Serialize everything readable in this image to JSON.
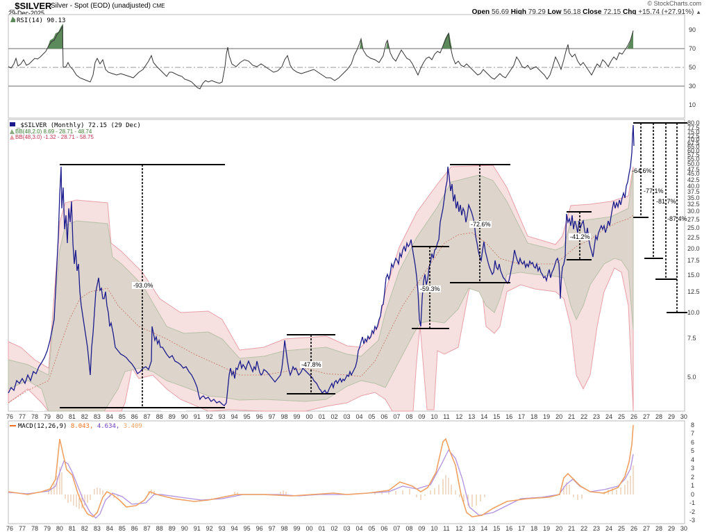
{
  "header": {
    "symbol": "_$SILVER",
    "description": "Silver - Spot (EOD) (unadjusted)",
    "exchange": "CME",
    "date": "29-Dec-2025",
    "copyright": "© StockCharts.com",
    "open_label": "Open",
    "open": "56.69",
    "high_label": "High",
    "high": "79.29",
    "low_label": "Low",
    "low": "56.18",
    "close_label": "Close",
    "close": "72.15",
    "chg_label": "Chg",
    "chg": "+15.74 (+27.91%)",
    "chg_icon": "up-triangle-icon"
  },
  "legends": {
    "rsi": "RSI(14) 90.13",
    "price": "_$SILVER (Monthly) 72.15 (29 Dec)",
    "bb2": "BB(48,2.0) 8.69 - 28.71 - 48.74",
    "bb3": "BB(48,3.0) -1.32 - 28.71 - 58.75",
    "macd_label": "MACD(12,26,9)",
    "macd_v1": "8.043,",
    "macd_v2": "4.634,",
    "macd_v3": "3.409"
  },
  "colors": {
    "price": "#1a1a8c",
    "bb2_fill": "#ddd5cc",
    "bb3_fill": "#f6e0e0",
    "bb3_line": "#e8a0a8",
    "bb2_line": "#b8c0a8",
    "ma_line": "#c87060",
    "rsi_line": "#333333",
    "rsi_overbought": "#5d8a5a",
    "macd_line": "#f0a060",
    "signal_line": "#b090e0",
    "histogram": "#e0b890"
  },
  "chart_data": [
    {
      "type": "line",
      "title": "RSI(14)",
      "ylim": [
        0,
        100
      ],
      "y_ticks": [
        10,
        30,
        50,
        70,
        90
      ],
      "reference_lines": [
        30,
        50,
        70
      ],
      "latest": 90.13,
      "x": [
        1976,
        1977,
        1978,
        1979,
        1979.5,
        1980,
        1980.1,
        1981,
        1982,
        1983,
        1984,
        1985,
        1986,
        1987,
        1988,
        1989,
        1990,
        1991,
        1992,
        1993,
        1993.5,
        1994,
        1995,
        1996,
        1997,
        1998,
        1999,
        2000,
        2001,
        2002,
        2003,
        2004,
        2005,
        2006,
        2007,
        2008,
        2009,
        2010,
        2011,
        2011.5,
        2012,
        2013,
        2014,
        2015,
        2016,
        2017,
        2018,
        2019,
        2020,
        2020.6,
        2021,
        2022,
        2023,
        2024,
        2025,
        2025.5,
        2026
      ],
      "values": [
        50,
        55,
        58,
        68,
        75,
        90,
        50,
        45,
        38,
        55,
        45,
        40,
        42,
        62,
        50,
        42,
        40,
        32,
        45,
        38,
        72,
        55,
        50,
        52,
        48,
        65,
        50,
        46,
        40,
        42,
        60,
        62,
        58,
        60,
        72,
        48,
        65,
        70,
        86,
        55,
        58,
        42,
        45,
        40,
        52,
        50,
        44,
        55,
        60,
        76,
        58,
        46,
        58,
        52,
        66,
        75,
        90
      ]
    },
    {
      "type": "line",
      "title": "_$SILVER (Monthly) 72.15 (29 Dec)",
      "scale": "log",
      "xlabel": "",
      "ylabel": "",
      "ylim": [
        3.5,
        80
      ],
      "x_ticks": [
        "76",
        "77",
        "78",
        "79",
        "80",
        "81",
        "82",
        "83",
        "84",
        "85",
        "86",
        "87",
        "88",
        "89",
        "90",
        "91",
        "92",
        "93",
        "94",
        "95",
        "96",
        "97",
        "98",
        "99",
        "00",
        "01",
        "02",
        "03",
        "04",
        "05",
        "06",
        "07",
        "08",
        "09",
        "10",
        "11",
        "12",
        "13",
        "14",
        "15",
        "16",
        "17",
        "18",
        "19",
        "20",
        "21",
        "22",
        "23",
        "24",
        "25",
        "26",
        "27",
        "28",
        "29",
        "30"
      ],
      "y_ticks": [
        5.0,
        7.5,
        10.0,
        12.5,
        15.0,
        17.5,
        20.0,
        22.5,
        25.0,
        27.5,
        30.0,
        32.5,
        35.0,
        37.5,
        40.0,
        42.5,
        45.0,
        47.5,
        50.0,
        52.5,
        55.0,
        57.5,
        60.0,
        62.5,
        65.0,
        67.5,
        70.0,
        72.5,
        75.0,
        77.5,
        80.0
      ],
      "series": [
        {
          "name": "_$SILVER",
          "x": [
            1976,
            1977,
            1978,
            1979,
            1979.5,
            1980.0,
            1980.2,
            1980.6,
            1981,
            1982,
            1982.5,
            1983.1,
            1983.6,
            1984,
            1985,
            1986,
            1986.5,
            1987.3,
            1988,
            1989,
            1990,
            1991,
            1992,
            1993,
            1993.5,
            1994,
            1995,
            1996,
            1997,
            1998.0,
            1998.5,
            1999,
            2000,
            2001,
            2001.8,
            2002,
            2003,
            2004,
            2005,
            2006,
            2007,
            2008.2,
            2008.8,
            2009,
            2010,
            2011.3,
            2012,
            2013,
            2013.5,
            2014,
            2015,
            2015.9,
            2016.5,
            2017,
            2018,
            2019,
            2020.2,
            2020.6,
            2021,
            2022,
            2022.7,
            2023,
            2024,
            2025,
            2025.5,
            2025.9
          ],
          "values": [
            4.3,
            4.6,
            5.4,
            8.0,
            16.0,
            48.0,
            20.0,
            16.0,
            11.0,
            6.0,
            9.0,
            14.0,
            11.0,
            8.0,
            6.0,
            5.5,
            5.0,
            9.5,
            6.5,
            5.5,
            4.8,
            4.0,
            3.9,
            3.6,
            5.0,
            5.3,
            5.1,
            5.0,
            4.7,
            7.5,
            5.2,
            5.2,
            5.0,
            4.4,
            4.1,
            4.6,
            4.9,
            6.5,
            7.5,
            11.0,
            13.5,
            20.0,
            9.0,
            13.0,
            18.0,
            48.0,
            32.0,
            22.0,
            19.0,
            18.5,
            15.0,
            14.0,
            19.0,
            17.0,
            15.0,
            17.0,
            12.0,
            29.0,
            26.0,
            20.0,
            18.0,
            23.0,
            30.0,
            36.0,
            45.0,
            72.15
          ]
        },
        {
          "name": "BB(48,2.0) upper",
          "latest": 48.74
        },
        {
          "name": "BB(48,2.0) middle",
          "latest": 28.71
        },
        {
          "name": "BB(48,2.0) lower",
          "latest": 8.69
        },
        {
          "name": "BB(48,3.0) upper",
          "latest": 58.75
        },
        {
          "name": "BB(48,3.0) lower",
          "latest": -1.32
        }
      ],
      "annotations": [
        {
          "label": "-93.0%",
          "from": 50.0,
          "to": 3.5,
          "x_range": [
            1980,
            1993.3
          ]
        },
        {
          "label": "-47.8%",
          "from": 8.0,
          "to": 4.1,
          "x_range": [
            1998,
            2002.4
          ]
        },
        {
          "label": "-59.3%",
          "from": 20.5,
          "to": 8.5,
          "x_range": [
            2008,
            2010
          ]
        },
        {
          "label": "-72.6%",
          "from": 49.0,
          "to": 13.8,
          "x_range": [
            2011,
            2016
          ]
        },
        {
          "label": "-41.2%",
          "from": 30.0,
          "to": 17.7,
          "x_range": [
            2020.6,
            2022.7
          ]
        },
        {
          "label": "-64.6%",
          "from": 80.0,
          "to": 28.0,
          "x_range": [
            2026,
            2026.7
          ]
        },
        {
          "label": "-77.1%",
          "from": 80.0,
          "to": 18.0,
          "x_range": [
            2026.5,
            2027.8
          ]
        },
        {
          "label": "-81.7%",
          "from": 80.0,
          "to": 14.5,
          "x_range": [
            2027.5,
            2028.7
          ]
        },
        {
          "label": "-87.4%",
          "from": 80.0,
          "to": 10.0,
          "x_range": [
            2028.3,
            2030
          ]
        }
      ]
    },
    {
      "type": "line",
      "title": "MACD(12,26,9)",
      "ylim": [
        -3.2,
        8.3
      ],
      "y_ticks": [
        -3,
        -2,
        -1,
        0,
        1,
        2,
        3,
        4,
        5,
        6,
        7,
        8
      ],
      "latest": {
        "macd": 8.043,
        "signal": 4.634,
        "histogram": 3.409
      },
      "series": [
        {
          "name": "MACD",
          "x": [
            1976,
            1978,
            1979,
            1979.6,
            1980.0,
            1980.3,
            1980.8,
            1981.5,
            1982.0,
            1982.6,
            1983.2,
            1983.8,
            1984.5,
            1985.5,
            1987.0,
            1987.7,
            1989,
            1991,
            1993,
            1995,
            2000,
            2003,
            2005,
            2007,
            2008.3,
            2009,
            2010,
            2011.3,
            2011.8,
            2012.5,
            2013.5,
            2014,
            2015,
            2016.5,
            2018,
            2020,
            2020.7,
            2021.5,
            2022.5,
            2023.5,
            2024.5,
            2025.5,
            2026
          ],
          "values": [
            0.2,
            0.1,
            0.5,
            1.5,
            6.5,
            4.0,
            2.5,
            -0.5,
            -3.0,
            -3.4,
            -1.5,
            0.5,
            -0.4,
            -1.6,
            -1.0,
            0.4,
            -0.5,
            -0.8,
            -0.5,
            0.0,
            0.2,
            0.0,
            0.6,
            1.5,
            2.0,
            0.5,
            1.5,
            6.5,
            4.0,
            0.5,
            -1.5,
            -2.5,
            -2.0,
            -0.5,
            -0.8,
            0.2,
            2.5,
            1.8,
            0.5,
            1.0,
            1.5,
            3.0,
            8.043
          ]
        },
        {
          "name": "Signal",
          "x": [
            1976,
            1979,
            1980.0,
            1980.4,
            1981.0,
            1982.0,
            1982.8,
            1984.0,
            1985.5,
            1987.8,
            1991,
            1995,
            2005,
            2008.5,
            2010,
            2011.5,
            2012.2,
            2013.5,
            2014.2,
            2015.5,
            2017,
            2020.2,
            2021,
            2022.5,
            2024.5,
            2025.5,
            2026
          ],
          "values": [
            0.2,
            0.4,
            3.0,
            4.5,
            3.0,
            -1.0,
            -2.9,
            0.0,
            -1.5,
            0.4,
            -0.8,
            0.0,
            0.3,
            1.5,
            1.0,
            4.2,
            5.3,
            2.0,
            -2.5,
            -2.0,
            -0.5,
            0.0,
            1.5,
            0.8,
            1.2,
            2.0,
            4.634
          ]
        },
        {
          "name": "Histogram",
          "latest": 3.409
        }
      ]
    }
  ]
}
